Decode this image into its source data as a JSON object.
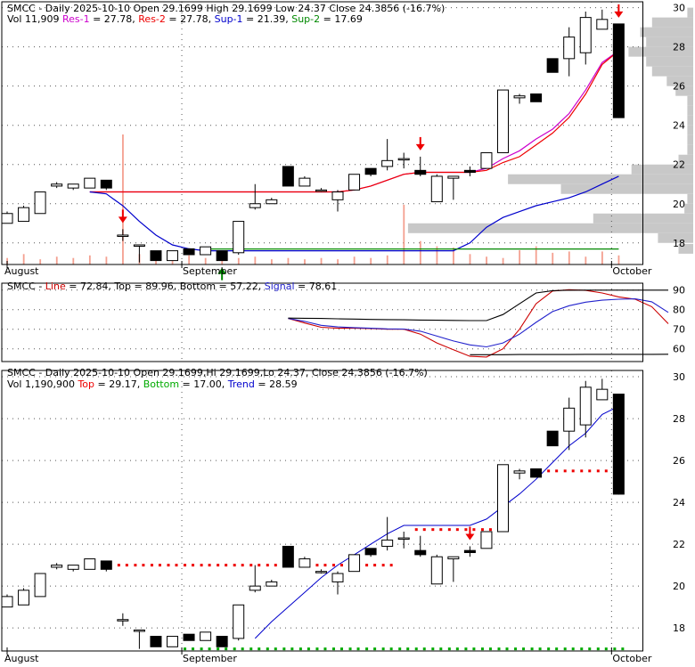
{
  "colors": {
    "res1": "#cc00cc",
    "res2": "#ee0000",
    "sup1": "#0000cc",
    "sup2": "#008800",
    "volume": "#f4a090",
    "volume_profile": "#c8c8c8",
    "candle": "#000000",
    "arrow_sell": "#ee0000",
    "arrow_buy": "#008800",
    "kline": "#cc0000",
    "signal": "#2222cc",
    "bands": "#000000",
    "trend": "#0000cc",
    "top_dots": "#ee0000",
    "bottom_dots": "#00aa00"
  },
  "panel1": {
    "title": "SMCC - Daily 2025-10-10 Open 29.1699  High 29.1699  Low 24.37  Close 24.3856 (-16.7%)",
    "vol_prefix": "Vol 11,909",
    "res1_label": "Res-1",
    "res1_value": " = 27.78,",
    "res2_label": "Res-2",
    "res2_value": " = 27.78,",
    "sup1_label": "Sup-1",
    "sup1_value": " = 21.39,",
    "sup2_label": "Sup-2",
    "sup2_value": " = 17.69"
  },
  "panel2": {
    "prefix": "SMCC - ",
    "line_label": "Line",
    "line_value": " = 72.84,",
    "top_label": " Top = 89.96,",
    "bottom_label": " Bottom = 57.22,",
    "signal_label": "Signal",
    "signal_value": " = 78.61"
  },
  "panel3": {
    "title": "SMCC - Daily 2025-10-10 Open 29.1699,Hi 29.1699,Lo 24.37,  Close 24.3856 (-16.7%)",
    "vol_prefix": "Vol 1,190,900",
    "top_label": "Top",
    "top_value": " = 29.17,",
    "bottom_label": "Bottom",
    "bottom_value": " = 17.00,",
    "trend_label": "Trend",
    "trend_value": " = 28.59"
  },
  "chart_data": [
    {
      "type": "candlestick",
      "x_labels": [
        "August",
        "September",
        "October"
      ],
      "x_label_index": [
        0,
        11,
        37
      ],
      "y_ticks": [
        18,
        20,
        22,
        24,
        26,
        28,
        30
      ],
      "ylim": [
        16.9,
        30.3
      ],
      "grid": true,
      "candles": [
        {
          "o": 19.0,
          "h": 19.6,
          "l": 19.0,
          "c": 19.5
        },
        {
          "o": 19.1,
          "h": 19.9,
          "l": 19.1,
          "c": 19.8
        },
        {
          "o": 19.5,
          "h": 20.6,
          "l": 19.5,
          "c": 20.6
        },
        {
          "o": 20.9,
          "h": 21.1,
          "l": 20.8,
          "c": 21.0
        },
        {
          "o": 20.8,
          "h": 21.0,
          "l": 20.7,
          "c": 21.0
        },
        {
          "o": 20.8,
          "h": 21.3,
          "l": 20.8,
          "c": 21.3
        },
        {
          "o": 21.2,
          "h": 21.2,
          "l": 20.7,
          "c": 20.8
        },
        {
          "o": 18.4,
          "h": 18.7,
          "l": 18.1,
          "c": 18.4
        },
        {
          "o": 17.9,
          "h": 17.9,
          "l": 17.0,
          "c": 17.9
        },
        {
          "o": 17.6,
          "h": 17.6,
          "l": 17.1,
          "c": 17.1
        },
        {
          "o": 17.1,
          "h": 17.6,
          "l": 17.1,
          "c": 17.6
        },
        {
          "o": 17.7,
          "h": 17.7,
          "l": 17.4,
          "c": 17.4
        },
        {
          "o": 17.4,
          "h": 17.8,
          "l": 17.4,
          "c": 17.8
        },
        {
          "o": 17.6,
          "h": 17.6,
          "l": 17.1,
          "c": 17.1
        },
        {
          "o": 17.5,
          "h": 19.1,
          "l": 17.4,
          "c": 19.1
        },
        {
          "o": 19.8,
          "h": 21.0,
          "l": 19.7,
          "c": 20.0
        },
        {
          "o": 20.0,
          "h": 20.3,
          "l": 20.0,
          "c": 20.2
        },
        {
          "o": 21.9,
          "h": 21.9,
          "l": 20.9,
          "c": 20.9
        },
        {
          "o": 20.9,
          "h": 21.4,
          "l": 20.9,
          "c": 21.3
        },
        {
          "o": 20.7,
          "h": 20.8,
          "l": 20.6,
          "c": 20.7
        },
        {
          "o": 20.2,
          "h": 20.7,
          "l": 19.6,
          "c": 20.6
        },
        {
          "o": 20.7,
          "h": 21.5,
          "l": 20.7,
          "c": 21.5
        },
        {
          "o": 21.8,
          "h": 21.8,
          "l": 21.4,
          "c": 21.5
        },
        {
          "o": 21.9,
          "h": 23.3,
          "l": 21.7,
          "c": 22.2
        },
        {
          "o": 22.3,
          "h": 22.6,
          "l": 21.8,
          "c": 22.3
        },
        {
          "o": 21.7,
          "h": 22.4,
          "l": 21.4,
          "c": 21.5
        },
        {
          "o": 20.1,
          "h": 21.5,
          "l": 20.1,
          "c": 21.4
        },
        {
          "o": 21.3,
          "h": 21.4,
          "l": 20.2,
          "c": 21.4
        },
        {
          "o": 21.7,
          "h": 21.9,
          "l": 21.4,
          "c": 21.6
        },
        {
          "o": 21.8,
          "h": 22.6,
          "l": 21.8,
          "c": 22.6
        },
        {
          "o": 22.6,
          "h": 25.8,
          "l": 22.6,
          "c": 25.8
        },
        {
          "o": 25.4,
          "h": 25.6,
          "l": 25.1,
          "c": 25.5
        },
        {
          "o": 25.6,
          "h": 25.6,
          "l": 25.2,
          "c": 25.2
        },
        {
          "o": 27.4,
          "h": 27.4,
          "l": 26.7,
          "c": 26.7
        },
        {
          "o": 27.4,
          "h": 29.0,
          "l": 26.5,
          "c": 28.5
        },
        {
          "o": 27.7,
          "h": 29.8,
          "l": 27.1,
          "c": 29.5
        },
        {
          "o": 28.9,
          "h": 29.9,
          "l": 28.9,
          "c": 29.4
        },
        {
          "o": 29.17,
          "h": 29.17,
          "l": 24.37,
          "c": 24.39
        }
      ],
      "series": [
        {
          "name": "Res-1",
          "values": [
            null,
            null,
            null,
            null,
            null,
            20.6,
            20.6,
            20.6,
            20.6,
            20.6,
            20.6,
            20.6,
            20.6,
            20.6,
            20.6,
            20.6,
            20.6,
            20.6,
            20.6,
            20.6,
            20.6,
            20.7,
            20.9,
            21.2,
            21.5,
            21.6,
            21.6,
            21.6,
            21.6,
            21.8,
            22.3,
            22.7,
            23.3,
            23.8,
            24.6,
            25.8,
            27.2,
            27.8
          ]
        },
        {
          "name": "Res-2",
          "values": [
            null,
            null,
            null,
            null,
            null,
            20.6,
            20.6,
            20.6,
            20.6,
            20.6,
            20.6,
            20.6,
            20.6,
            20.6,
            20.6,
            20.6,
            20.6,
            20.6,
            20.6,
            20.6,
            20.6,
            20.7,
            20.9,
            21.2,
            21.5,
            21.6,
            21.6,
            21.6,
            21.6,
            21.7,
            22.1,
            22.4,
            23.0,
            23.6,
            24.4,
            25.6,
            27.1,
            27.8
          ]
        },
        {
          "name": "Sup-1",
          "values": [
            null,
            null,
            null,
            null,
            null,
            20.6,
            20.5,
            19.9,
            19.1,
            18.4,
            17.9,
            17.7,
            17.6,
            17.6,
            17.6,
            17.6,
            17.6,
            17.6,
            17.6,
            17.6,
            17.6,
            17.6,
            17.6,
            17.6,
            17.6,
            17.6,
            17.6,
            17.6,
            18.0,
            18.8,
            19.3,
            19.6,
            19.9,
            20.1,
            20.3,
            20.6,
            21.0,
            21.4
          ]
        },
        {
          "name": "Sup-2",
          "values": [
            null,
            null,
            null,
            null,
            null,
            null,
            null,
            null,
            null,
            null,
            null,
            null,
            17.69,
            17.69,
            17.69,
            17.69,
            17.69,
            17.69,
            17.69,
            17.69,
            17.69,
            17.69,
            17.69,
            17.69,
            17.69,
            17.69,
            17.69,
            17.69,
            17.69,
            17.69,
            17.69,
            17.69,
            17.69,
            17.69,
            17.69,
            17.69,
            17.69,
            17.69
          ]
        }
      ],
      "volume_relative": [
        0.05,
        0.08,
        0.04,
        0.06,
        0.05,
        0.07,
        0.06,
        1.0,
        0.08,
        0.05,
        0.06,
        0.07,
        0.05,
        0.04,
        0.05,
        0.06,
        0.04,
        0.05,
        0.04,
        0.05,
        0.04,
        0.06,
        0.05,
        0.07,
        0.46,
        0.18,
        0.14,
        0.13,
        0.08,
        0.06,
        0.05,
        0.11,
        0.14,
        0.09,
        0.1,
        0.06,
        0.1,
        0.07
      ],
      "volume_profile": [
        {
          "price": 17.7,
          "rel": 0.05
        },
        {
          "price": 18.25,
          "rel": 0.12
        },
        {
          "price": 18.75,
          "rel": 0.97
        },
        {
          "price": 19.25,
          "rel": 0.34
        },
        {
          "price": 19.75,
          "rel": 0.03
        },
        {
          "price": 20.25,
          "rel": 0.02
        },
        {
          "price": 20.75,
          "rel": 0.45
        },
        {
          "price": 21.25,
          "rel": 0.63
        },
        {
          "price": 21.75,
          "rel": 0.21
        },
        {
          "price": 22.25,
          "rel": 0.05
        },
        {
          "price": 22.75,
          "rel": 0.02
        },
        {
          "price": 23.25,
          "rel": 0.02
        },
        {
          "price": 23.75,
          "rel": 0.02
        },
        {
          "price": 24.25,
          "rel": 0.02
        },
        {
          "price": 24.75,
          "rel": 0.02
        },
        {
          "price": 25.25,
          "rel": 0.02
        },
        {
          "price": 25.75,
          "rel": 0.06
        },
        {
          "price": 26.25,
          "rel": 0.09
        },
        {
          "price": 26.75,
          "rel": 0.14
        },
        {
          "price": 27.25,
          "rel": 0.16
        },
        {
          "price": 27.75,
          "rel": 0.22
        },
        {
          "price": 28.25,
          "rel": 0.16
        },
        {
          "price": 28.75,
          "rel": 0.18
        },
        {
          "price": 29.25,
          "rel": 0.14
        },
        {
          "price": 29.75,
          "rel": 0.02
        }
      ],
      "arrows": [
        {
          "index": 7,
          "kind": "sell"
        },
        {
          "index": 13,
          "kind": "buy"
        },
        {
          "index": 25,
          "kind": "sell"
        },
        {
          "index": 37,
          "kind": "sell"
        }
      ]
    },
    {
      "type": "line",
      "y_ticks": [
        60,
        70,
        80,
        90
      ],
      "ylim": [
        53.5,
        93.5
      ],
      "grid": true,
      "start_index": 17,
      "series": [
        {
          "name": "Line",
          "values": [
            75.5,
            73.2,
            71.0,
            70.5,
            70.5,
            70.3,
            70.0,
            70.0,
            67.5,
            63.0,
            59.5,
            56.2,
            55.8,
            60.0,
            70.0,
            83.0,
            89.5,
            90.2,
            89.8,
            88.5,
            86.5,
            85.3,
            81.5,
            72.8
          ]
        },
        {
          "name": "Signal",
          "values": [
            75.5,
            74.0,
            72.0,
            71.2,
            70.8,
            70.5,
            70.2,
            70.1,
            69.0,
            66.5,
            64.0,
            62.0,
            61.0,
            63.0,
            67.5,
            73.5,
            79.0,
            82.0,
            83.8,
            84.8,
            85.3,
            85.5,
            84.0,
            78.6
          ]
        },
        {
          "name": "Top",
          "values": [
            75.7,
            75.6,
            75.5,
            75.3,
            75.2,
            75.0,
            74.9,
            74.8,
            74.7,
            74.6,
            74.5,
            74.4,
            74.4,
            77.5,
            83.0,
            88.5,
            89.7,
            89.9,
            89.96,
            89.96,
            89.96,
            89.96,
            89.96,
            89.96
          ]
        },
        {
          "name": "Bottom",
          "values": [
            null,
            null,
            null,
            null,
            null,
            null,
            null,
            null,
            null,
            null,
            null,
            57.0,
            57.0,
            57.0,
            57.1,
            57.1,
            57.1,
            57.1,
            57.2,
            57.2,
            57.2,
            57.2,
            57.2,
            57.22
          ]
        }
      ]
    },
    {
      "type": "candlestick",
      "x_labels": [
        "August",
        "September",
        "October"
      ],
      "y_ticks": [
        18,
        20,
        22,
        24,
        26,
        28,
        30
      ],
      "ylim": [
        16.9,
        30.3
      ],
      "grid": true,
      "series": [
        {
          "name": "Top",
          "values": [
            null,
            null,
            null,
            null,
            null,
            null,
            null,
            21.0,
            21.0,
            21.0,
            21.0,
            21.0,
            21.0,
            21.0,
            21.0,
            21.0,
            21.0,
            21.0,
            21.0,
            21.0,
            21.0,
            21.0,
            21.0,
            21.0,
            null,
            22.7,
            22.7,
            22.7,
            22.7,
            22.7,
            null,
            null,
            null,
            25.5,
            25.5,
            25.5,
            25.5,
            null
          ]
        },
        {
          "name": "Bottom",
          "values": [
            null,
            null,
            null,
            null,
            null,
            null,
            null,
            null,
            null,
            null,
            null,
            17.0,
            17.0,
            17.0,
            17.0,
            17.0,
            17.0,
            17.0,
            17.0,
            17.0,
            17.0,
            17.0,
            17.0,
            17.0,
            17.0,
            17.0,
            17.0,
            17.0,
            17.0,
            17.0,
            17.0,
            17.0,
            17.0,
            17.0,
            17.0,
            17.0,
            17.0,
            17.0
          ]
        },
        {
          "name": "Trend",
          "values": [
            null,
            null,
            null,
            null,
            null,
            null,
            null,
            null,
            null,
            null,
            null,
            null,
            null,
            null,
            null,
            17.5,
            18.3,
            19.0,
            19.7,
            20.4,
            21.0,
            21.5,
            22.0,
            22.5,
            22.9,
            22.9,
            22.9,
            22.9,
            22.9,
            23.2,
            23.8,
            24.4,
            25.1,
            25.9,
            26.7,
            27.3,
            28.2,
            28.59
          ]
        }
      ],
      "arrows": [
        {
          "index": 28,
          "kind": "sell"
        }
      ]
    }
  ]
}
